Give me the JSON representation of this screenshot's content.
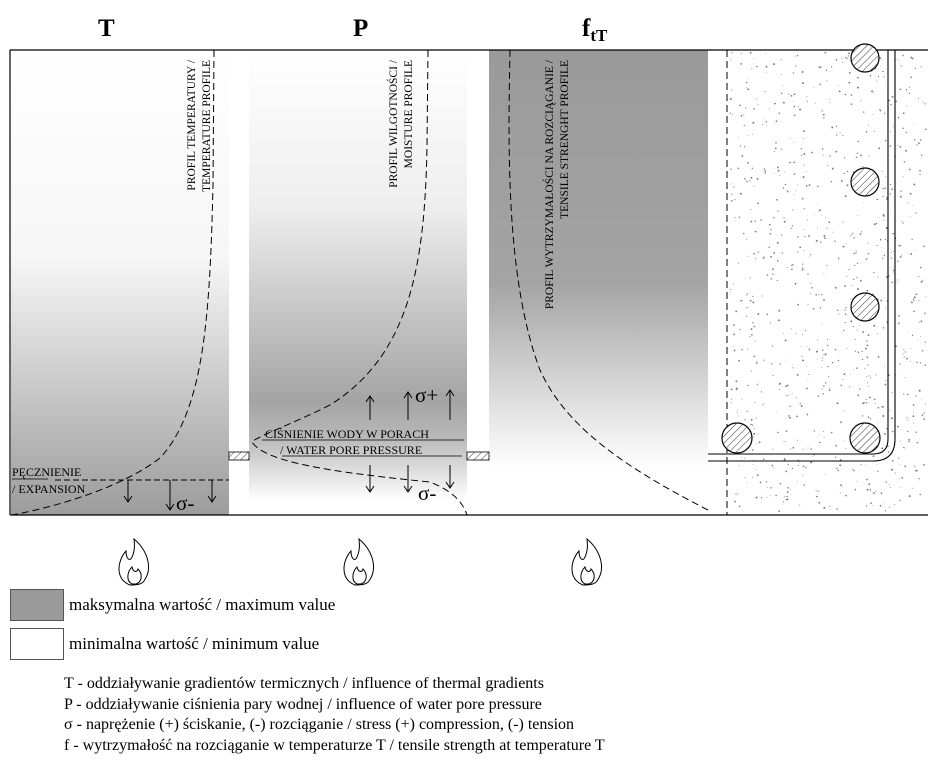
{
  "headers": {
    "temperature": "T",
    "pressure": "P",
    "strength_main": "f",
    "strength_sub": "tT"
  },
  "profile_labels": {
    "temperature": [
      "PROFIL TEMPERATURY /",
      "TEMPERATURE PROFILE"
    ],
    "moisture": [
      "PROFIL WILGOTNOŚCI /",
      "MOISTURE PROFILE"
    ],
    "tensile": [
      "PROFIL WYTRZYMAŁOŚCI NA ROZCIĄGANIE /",
      "TENSILE STRENGHT PROFILE"
    ]
  },
  "expansion_label": [
    "PĘCZNIENIE",
    "/ EXPANSION"
  ],
  "pore_pressure_label": [
    "CIŚNIENIE WODY W PORACH",
    "/ WATER PORE PRESSURE"
  ],
  "sigma_plus": "σ+",
  "sigma_minus": "σ-",
  "legend": {
    "max_label": "maksymalna wartość / maximum value",
    "min_label": "minimalna wartość / minimum value",
    "max_color": "#9a9a9a",
    "min_color": "#ffffff"
  },
  "notes": [
    "T - oddziaływanie gradientów termicznych / influence of thermal gradients",
    "P - oddziaływanie ciśnienia pary wodnej  / influence of water pore pressure",
    "σ - naprężenie (+) ściskanie, (-) rozciąganie / stress (+) compression, (-) tension",
    "f  - wytrzymałość na rozciąganie w temperaturze T / tensile strength at temperature T"
  ],
  "icons": {
    "fire": "fire-icon",
    "rebar": "rebar-section-icon"
  }
}
